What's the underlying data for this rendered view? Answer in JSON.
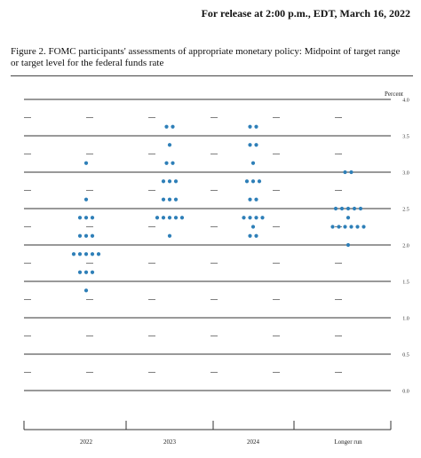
{
  "header": {
    "release_line": "For release at 2:00 p.m., EDT, March 16, 2022"
  },
  "figure": {
    "caption_line1": "Figure 2.  FOMC participants' assessments of appropriate monetary policy:  Midpoint of target range",
    "caption_line2": "or target level for the federal funds rate"
  },
  "chart_data": {
    "type": "scatter",
    "title": "",
    "unit_label": "Percent",
    "categories": [
      "2022",
      "2023",
      "2024",
      "Longer run"
    ],
    "ylim": [
      0.0,
      4.0
    ],
    "y_ticks": [
      "0.0",
      "0.5",
      "1.0",
      "1.5",
      "2.0",
      "2.5",
      "3.0",
      "3.5",
      "4.0"
    ],
    "y_tick_values": [
      0,
      0.5,
      1,
      1.5,
      2,
      2.5,
      3,
      3.5,
      4
    ],
    "minor_tick_step": 0.25,
    "dot_color": "#2e7fb8",
    "dots": {
      "2022": [
        {
          "rate": 3.125,
          "count": 1
        },
        {
          "rate": 2.625,
          "count": 1
        },
        {
          "rate": 2.375,
          "count": 3
        },
        {
          "rate": 2.125,
          "count": 3
        },
        {
          "rate": 1.875,
          "count": 5
        },
        {
          "rate": 1.625,
          "count": 3
        },
        {
          "rate": 1.375,
          "count": 1
        }
      ],
      "2023": [
        {
          "rate": 3.625,
          "count": 2
        },
        {
          "rate": 3.375,
          "count": 1
        },
        {
          "rate": 3.125,
          "count": 2
        },
        {
          "rate": 2.875,
          "count": 3
        },
        {
          "rate": 2.625,
          "count": 3
        },
        {
          "rate": 2.375,
          "count": 5
        },
        {
          "rate": 2.125,
          "count": 1
        }
      ],
      "2024": [
        {
          "rate": 3.625,
          "count": 2
        },
        {
          "rate": 3.375,
          "count": 2
        },
        {
          "rate": 3.125,
          "count": 1
        },
        {
          "rate": 2.875,
          "count": 3
        },
        {
          "rate": 2.625,
          "count": 2
        },
        {
          "rate": 2.375,
          "count": 4
        },
        {
          "rate": 2.25,
          "count": 1
        },
        {
          "rate": 2.125,
          "count": 2
        }
      ],
      "Longer run": [
        {
          "rate": 3.0,
          "count": 2
        },
        {
          "rate": 2.5,
          "count": 5
        },
        {
          "rate": 2.375,
          "count": 1
        },
        {
          "rate": 2.25,
          "count": 6
        },
        {
          "rate": 2.0,
          "count": 1
        }
      ]
    }
  }
}
